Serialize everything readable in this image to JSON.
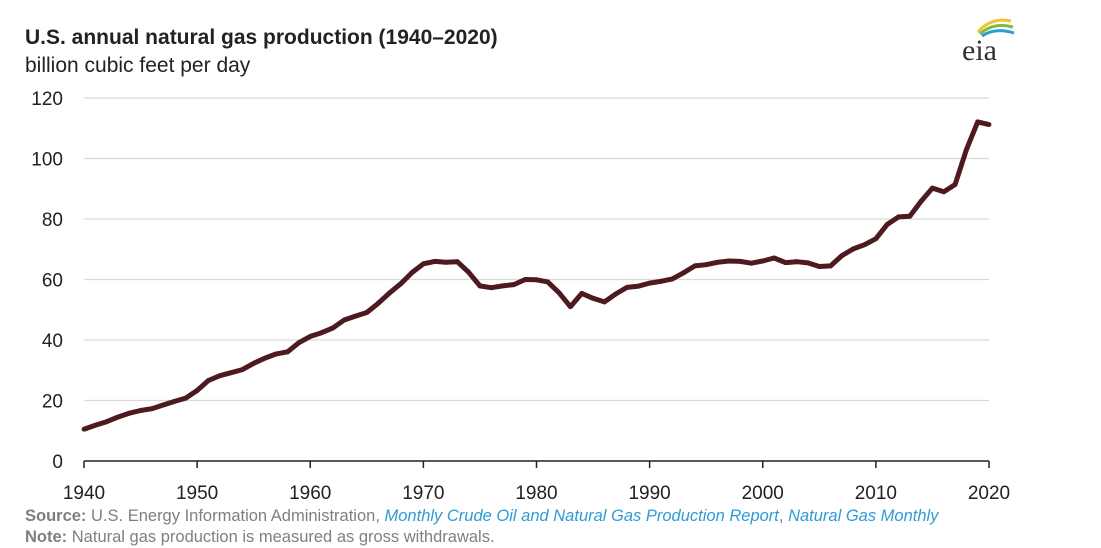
{
  "header": {
    "title": "U.S. annual natural gas production (1940–2020)",
    "subtitle": "billion cubic feet per day",
    "logo_text": "eia"
  },
  "footer": {
    "source_label": "Source:",
    "source_text": "U.S. Energy Information Administration,",
    "source_link_1": "Monthly Crude Oil and Natural Gas Production Report",
    "source_sep": ",",
    "source_link_2": "Natural Gas Monthly",
    "note_label": "Note:",
    "note_text": "Natural gas production is measured as gross withdrawals."
  },
  "colors": {
    "line": "#4d1a1f",
    "grid": "#d9d9d9",
    "axis": "#222222",
    "link": "#2e9bd6",
    "footer_text": "#7f7f7f"
  },
  "chart_data": {
    "type": "line",
    "title": "U.S. annual natural gas production (1940–2020)",
    "ylabel": "billion cubic feet per day",
    "xlabel": "",
    "xlim": [
      1940,
      2020
    ],
    "ylim": [
      0,
      120
    ],
    "xticks": [
      "1940",
      "1950",
      "1960",
      "1970",
      "1980",
      "1990",
      "2000",
      "2010",
      "2020"
    ],
    "yticks": [
      "0",
      "20",
      "40",
      "60",
      "80",
      "100",
      "120"
    ],
    "grid": true,
    "series": [
      {
        "name": "U.S. annual natural gas production",
        "x": [
          1940,
          1941,
          1942,
          1943,
          1944,
          1945,
          1946,
          1947,
          1948,
          1949,
          1950,
          1951,
          1952,
          1953,
          1954,
          1955,
          1956,
          1957,
          1958,
          1959,
          1960,
          1961,
          1962,
          1963,
          1964,
          1965,
          1966,
          1967,
          1968,
          1969,
          1970,
          1971,
          1972,
          1973,
          1974,
          1975,
          1976,
          1977,
          1978,
          1979,
          1980,
          1981,
          1982,
          1983,
          1984,
          1985,
          1986,
          1987,
          1988,
          1989,
          1990,
          1991,
          1992,
          1993,
          1994,
          1995,
          1996,
          1997,
          1998,
          1999,
          2000,
          2001,
          2002,
          2003,
          2004,
          2005,
          2006,
          2007,
          2008,
          2009,
          2010,
          2011,
          2012,
          2013,
          2014,
          2015,
          2016,
          2017,
          2018,
          2019,
          2020
        ],
        "values": [
          10.5,
          11.8,
          13.0,
          14.5,
          15.8,
          16.7,
          17.3,
          18.5,
          19.7,
          20.8,
          23.3,
          26.6,
          28.2,
          29.2,
          30.2,
          32.3,
          34.0,
          35.4,
          36.1,
          39.1,
          41.2,
          42.4,
          44.0,
          46.6,
          47.9,
          49.1,
          52.1,
          55.5,
          58.6,
          62.3,
          65.2,
          66.0,
          65.7,
          65.9,
          62.4,
          57.9,
          57.3,
          57.9,
          58.3,
          60.0,
          59.9,
          59.2,
          55.6,
          51.0,
          55.4,
          53.8,
          52.6,
          55.2,
          57.4,
          57.8,
          58.8,
          59.4,
          60.2,
          62.2,
          64.5,
          64.9,
          65.7,
          66.1,
          66.0,
          65.4,
          66.1,
          67.1,
          65.6,
          65.9,
          65.5,
          64.3,
          64.5,
          67.9,
          70.1,
          71.5,
          73.5,
          78.2,
          80.7,
          80.9,
          85.9,
          90.2,
          89.0,
          91.4,
          102.9,
          112.1,
          111.2
        ]
      }
    ]
  }
}
